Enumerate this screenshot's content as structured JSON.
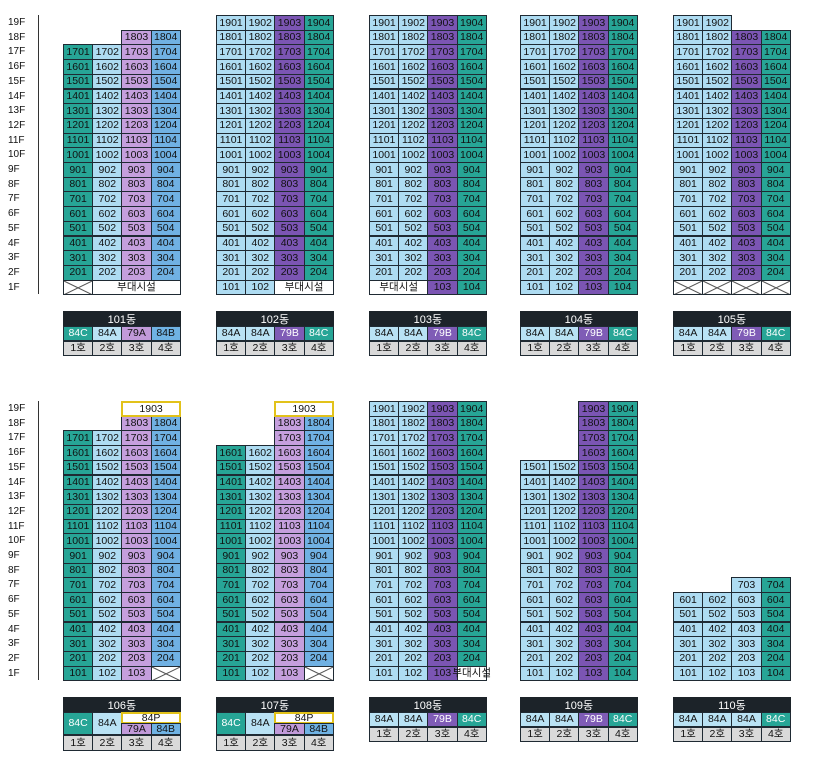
{
  "floors": [
    "19F",
    "18F",
    "17F",
    "16F",
    "15F",
    "14F",
    "13F",
    "12F",
    "11F",
    "10F",
    "9F",
    "8F",
    "7F",
    "6F",
    "5F",
    "4F",
    "3F",
    "2F",
    "1F"
  ],
  "unit_labels": [
    "1호",
    "2호",
    "3호",
    "4호"
  ],
  "facility_label": "부대시설",
  "colors": {
    "teal": "#27a596",
    "light_blue": "#aedcf2",
    "blue": "#70b1e3",
    "lavender": "#c59fdd",
    "purple": "#7b55b3",
    "penthouse_border": "#e2c21a",
    "header": "#1c2329"
  },
  "buildings": [
    {
      "name": "101동",
      "row": 0,
      "col": 0,
      "col_colors": [
        "teal",
        "lblue",
        "lav",
        "teal"
      ],
      "types": [
        "84C",
        "84A",
        "79A",
        "84B"
      ],
      "type_colors": [
        "t84c",
        "t84a",
        "t79a",
        "t84b"
      ],
      "col_floor_max": [
        17,
        17,
        18,
        18
      ],
      "col_floor_min": [
        2,
        2,
        2,
        2
      ],
      "ground": [
        {
          "kind": "x",
          "span": 1
        },
        {
          "kind": "fac",
          "span": 3
        }
      ],
      "col_color_override": {
        "3": "blue"
      }
    },
    {
      "name": "102동",
      "row": 0,
      "col": 1,
      "col_colors": [
        "lblue",
        "lblue",
        "purp",
        "teal"
      ],
      "types": [
        "84A",
        "84A",
        "79B",
        "84C"
      ],
      "type_colors": [
        "t84a",
        "t84a",
        "t79b",
        "t84c"
      ],
      "col_floor_max": [
        19,
        19,
        19,
        19
      ],
      "col_floor_min": [
        1,
        1,
        2,
        2
      ],
      "ground": [
        {
          "kind": "unit",
          "col": 0
        },
        {
          "kind": "unit",
          "col": 1
        },
        {
          "kind": "fac",
          "span": 2
        }
      ]
    },
    {
      "name": "103동",
      "row": 0,
      "col": 2,
      "col_colors": [
        "lblue",
        "lblue",
        "purp",
        "teal"
      ],
      "types": [
        "84A",
        "84A",
        "79B",
        "84C"
      ],
      "type_colors": [
        "t84a",
        "t84a",
        "t79b",
        "t84c"
      ],
      "col_floor_max": [
        19,
        19,
        19,
        19
      ],
      "col_floor_min": [
        2,
        2,
        1,
        1
      ],
      "ground": [
        {
          "kind": "fac",
          "span": 2
        },
        {
          "kind": "unit",
          "col": 2
        },
        {
          "kind": "unit",
          "col": 3
        }
      ]
    },
    {
      "name": "104동",
      "row": 0,
      "col": 3,
      "col_colors": [
        "lblue",
        "lblue",
        "purp",
        "teal"
      ],
      "types": [
        "84A",
        "84A",
        "79B",
        "84C"
      ],
      "type_colors": [
        "t84a",
        "t84a",
        "t79b",
        "t84c"
      ],
      "col_floor_max": [
        19,
        19,
        19,
        19
      ],
      "col_floor_min": [
        1,
        1,
        1,
        1
      ],
      "ground": [
        {
          "kind": "unit",
          "col": 0
        },
        {
          "kind": "unit",
          "col": 1
        },
        {
          "kind": "unit",
          "col": 2
        },
        {
          "kind": "unit",
          "col": 3
        }
      ]
    },
    {
      "name": "105동",
      "row": 0,
      "col": 4,
      "col_colors": [
        "lblue",
        "lblue",
        "purp",
        "teal"
      ],
      "types": [
        "84A",
        "84A",
        "79B",
        "84C"
      ],
      "type_colors": [
        "t84a",
        "t84a",
        "t79b",
        "t84c"
      ],
      "col_floor_max": [
        19,
        19,
        18,
        18
      ],
      "col_floor_min": [
        2,
        2,
        2,
        2
      ],
      "ground": [
        {
          "kind": "x",
          "span": 1
        },
        {
          "kind": "x",
          "span": 1
        },
        {
          "kind": "x",
          "span": 1
        },
        {
          "kind": "x",
          "span": 1
        }
      ]
    },
    {
      "name": "106동",
      "row": 1,
      "col": 0,
      "col_colors": [
        "teal",
        "lblue",
        "lav",
        "blue"
      ],
      "types": [
        "84C",
        "84A",
        "79A",
        "84B"
      ],
      "type_colors": [
        "t84c",
        "t84a",
        "t79a",
        "t84b"
      ],
      "penthouse": "84P",
      "penthouse_unit": "1903",
      "col_floor_max": [
        17,
        17,
        18,
        18
      ],
      "col_floor_min": [
        1,
        1,
        1,
        2
      ],
      "ground": [
        {
          "kind": "unit",
          "col": 0
        },
        {
          "kind": "unit",
          "col": 1
        },
        {
          "kind": "unit",
          "col": 2
        },
        {
          "kind": "x",
          "span": 1
        }
      ]
    },
    {
      "name": "107동",
      "row": 1,
      "col": 1,
      "col_colors": [
        "teal",
        "lblue",
        "lav",
        "blue"
      ],
      "types": [
        "84C",
        "84A",
        "79A",
        "84B"
      ],
      "type_colors": [
        "t84c",
        "t84a",
        "t79a",
        "t84b"
      ],
      "penthouse": "84P",
      "penthouse_unit": "1903",
      "col_floor_max": [
        16,
        16,
        18,
        18
      ],
      "col_floor_min": [
        1,
        1,
        1,
        2
      ],
      "ground": [
        {
          "kind": "unit",
          "col": 0
        },
        {
          "kind": "unit",
          "col": 1
        },
        {
          "kind": "unit",
          "col": 2
        },
        {
          "kind": "x",
          "span": 1
        }
      ]
    },
    {
      "name": "108동",
      "row": 1,
      "col": 2,
      "col_colors": [
        "lblue",
        "lblue",
        "purp",
        "teal"
      ],
      "types": [
        "84A",
        "84A",
        "79B",
        "84C"
      ],
      "type_colors": [
        "t84a",
        "t84a",
        "t79b",
        "t84c"
      ],
      "col_floor_max": [
        19,
        19,
        19,
        19
      ],
      "col_floor_min": [
        1,
        1,
        1,
        2
      ],
      "ground": [
        {
          "kind": "unit",
          "col": 0
        },
        {
          "kind": "unit",
          "col": 1
        },
        {
          "kind": "unit",
          "col": 2
        },
        {
          "kind": "fac",
          "span": 1
        }
      ]
    },
    {
      "name": "109동",
      "row": 1,
      "col": 3,
      "col_colors": [
        "lblue",
        "lblue",
        "purp",
        "teal"
      ],
      "types": [
        "84A",
        "84A",
        "79B",
        "84C"
      ],
      "type_colors": [
        "t84a",
        "t84a",
        "t79b",
        "t84c"
      ],
      "col_floor_max": [
        15,
        15,
        19,
        19
      ],
      "col_floor_min": [
        1,
        1,
        1,
        1
      ],
      "ground": [
        {
          "kind": "unit",
          "col": 0
        },
        {
          "kind": "unit",
          "col": 1
        },
        {
          "kind": "unit",
          "col": 2
        },
        {
          "kind": "unit",
          "col": 3
        }
      ]
    },
    {
      "name": "110동",
      "row": 1,
      "col": 4,
      "col_colors": [
        "lblue",
        "lblue",
        "lblue",
        "teal"
      ],
      "types": [
        "84A",
        "84A",
        "84A",
        "84C"
      ],
      "type_colors": [
        "t84a",
        "t84a",
        "t84a",
        "t84c"
      ],
      "col_floor_max": [
        6,
        6,
        7,
        7
      ],
      "col_floor_min": [
        1,
        1,
        1,
        1
      ],
      "ground": [
        {
          "kind": "unit",
          "col": 0
        },
        {
          "kind": "unit",
          "col": 1
        },
        {
          "kind": "unit",
          "col": 2
        },
        {
          "kind": "unit",
          "col": 3
        }
      ]
    }
  ]
}
